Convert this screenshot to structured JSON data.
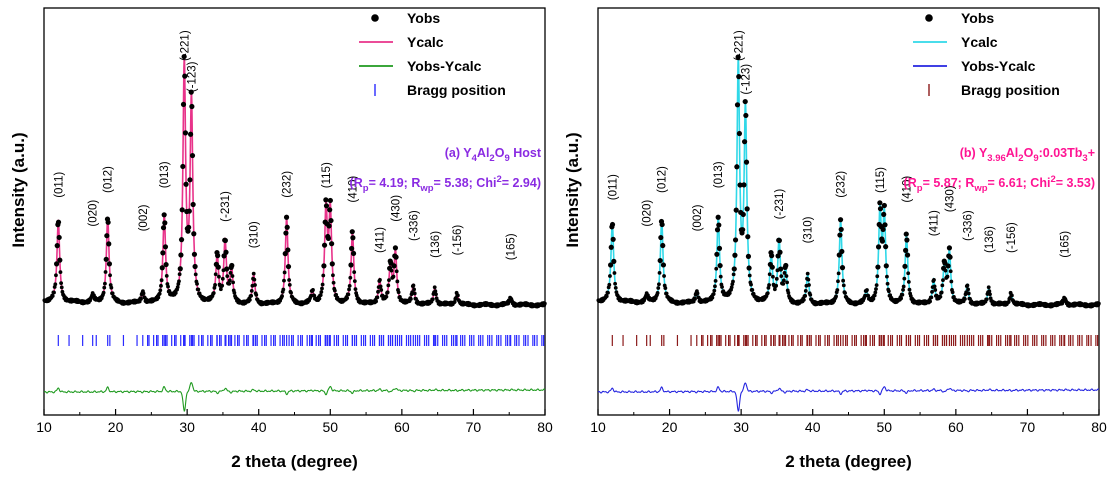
{
  "chart_data": [
    {
      "type": "line",
      "panel": "a",
      "xlabel": "2 theta (degree)",
      "ylabel": "Intensity (a.u.)",
      "xlim": [
        10,
        80
      ],
      "xticks": [
        "10",
        "20",
        "30",
        "40",
        "50",
        "60",
        "70",
        "80"
      ],
      "annotation_line1": "(a) Y4Al2O9 Host",
      "annotation_line2": "(Rp= 4.19; Rwp= 5.38; Chi2= 2.94)",
      "annotation_color": "#8a2be2",
      "calc_color": "#e8338a",
      "diff_color": "#1f9a1f",
      "bragg_color": "#2a2aff",
      "legend": [
        {
          "label": "Yobs",
          "kind": "dot",
          "color": "#000000"
        },
        {
          "label": "Ycalc",
          "kind": "line",
          "color": "#e8338a"
        },
        {
          "label": "Yobs-Ycalc",
          "kind": "line",
          "color": "#1f9a1f"
        },
        {
          "label": "Bragg position",
          "kind": "tick",
          "color": "#2a2aff"
        }
      ],
      "peaks": [
        {
          "pos": 12.0,
          "h": 0.34,
          "label": "(011)",
          "ly": 0.43
        },
        {
          "pos": 16.8,
          "h": 0.03,
          "label": "(020)",
          "ly": 0.31
        },
        {
          "pos": 18.9,
          "h": 0.36,
          "label": "(012)",
          "ly": 0.45
        },
        {
          "pos": 23.8,
          "h": 0.05,
          "label": "(002)",
          "ly": 0.29
        },
        {
          "pos": 26.8,
          "h": 0.37,
          "label": "(013)",
          "ly": 0.47
        },
        {
          "pos": 29.6,
          "h": 1.0,
          "label": "(-221)",
          "ly": 1.0
        },
        {
          "pos": 30.6,
          "h": 0.84,
          "label": "(-123)",
          "ly": 0.87
        },
        {
          "pos": 34.2,
          "h": 0.2,
          "label": "",
          "ly": 0
        },
        {
          "pos": 35.3,
          "h": 0.26,
          "label": "(-231)",
          "ly": 0.33
        },
        {
          "pos": 36.2,
          "h": 0.14,
          "label": "",
          "ly": 0
        },
        {
          "pos": 39.3,
          "h": 0.12,
          "label": "(310)",
          "ly": 0.22
        },
        {
          "pos": 43.9,
          "h": 0.36,
          "label": "(232)",
          "ly": 0.43
        },
        {
          "pos": 47.5,
          "h": 0.05,
          "label": "",
          "ly": 0
        },
        {
          "pos": 49.4,
          "h": 0.39,
          "label": "(115)",
          "ly": 0.47
        },
        {
          "pos": 50.0,
          "h": 0.38,
          "label": "",
          "ly": 0
        },
        {
          "pos": 53.1,
          "h": 0.3,
          "label": "(410)",
          "ly": 0.41
        },
        {
          "pos": 56.9,
          "h": 0.1,
          "label": "(411)",
          "ly": 0.2
        },
        {
          "pos": 58.4,
          "h": 0.16,
          "label": "",
          "ly": 0
        },
        {
          "pos": 59.1,
          "h": 0.22,
          "label": "(430)",
          "ly": 0.33
        },
        {
          "pos": 61.6,
          "h": 0.08,
          "label": "(-336)",
          "ly": 0.25
        },
        {
          "pos": 64.6,
          "h": 0.07,
          "label": "(136)",
          "ly": 0.18
        },
        {
          "pos": 67.7,
          "h": 0.05,
          "label": "(-156)",
          "ly": 0.19
        },
        {
          "pos": 75.2,
          "h": 0.03,
          "label": "(165)",
          "ly": 0.17
        }
      ]
    },
    {
      "type": "line",
      "panel": "b",
      "xlabel": "2 theta (degree)",
      "ylabel": "Intensity (a.u.)",
      "xlim": [
        10,
        80
      ],
      "xticks": [
        "10",
        "20",
        "30",
        "40",
        "50",
        "60",
        "70",
        "80"
      ],
      "annotation_line1": "(b) Y3.96Al2O9:0.03Tb3+",
      "annotation_line2": "(Rp= 5.87; Rwp= 6.61; Chi2= 3.53)",
      "annotation_color": "#ff1493",
      "calc_color": "#30d8e8",
      "diff_color": "#2525e0",
      "bragg_color": "#8b1a1a",
      "legend": [
        {
          "label": "Yobs",
          "kind": "dot",
          "color": "#000000"
        },
        {
          "label": "Ycalc",
          "kind": "line",
          "color": "#30d8e8"
        },
        {
          "label": "Yobs-Ycalc",
          "kind": "line",
          "color": "#2525e0"
        },
        {
          "label": "Bragg position",
          "kind": "tick",
          "color": "#8b1a1a"
        }
      ],
      "peaks": [
        {
          "pos": 12.0,
          "h": 0.33,
          "label": "(011)",
          "ly": 0.42
        },
        {
          "pos": 16.8,
          "h": 0.03,
          "label": "(020)",
          "ly": 0.31
        },
        {
          "pos": 18.9,
          "h": 0.35,
          "label": "(012)",
          "ly": 0.45
        },
        {
          "pos": 23.8,
          "h": 0.05,
          "label": "(002)",
          "ly": 0.29
        },
        {
          "pos": 26.8,
          "h": 0.36,
          "label": "(013)",
          "ly": 0.47
        },
        {
          "pos": 29.6,
          "h": 1.0,
          "label": "(-221)",
          "ly": 1.0
        },
        {
          "pos": 30.6,
          "h": 0.8,
          "label": "(-123)",
          "ly": 0.86
        },
        {
          "pos": 34.2,
          "h": 0.2,
          "label": "",
          "ly": 0
        },
        {
          "pos": 35.3,
          "h": 0.26,
          "label": "(-231)",
          "ly": 0.34
        },
        {
          "pos": 36.2,
          "h": 0.14,
          "label": "",
          "ly": 0
        },
        {
          "pos": 39.3,
          "h": 0.12,
          "label": "(310)",
          "ly": 0.24
        },
        {
          "pos": 43.9,
          "h": 0.35,
          "label": "(232)",
          "ly": 0.43
        },
        {
          "pos": 47.5,
          "h": 0.05,
          "label": "",
          "ly": 0
        },
        {
          "pos": 49.4,
          "h": 0.38,
          "label": "(115)",
          "ly": 0.45
        },
        {
          "pos": 50.0,
          "h": 0.36,
          "label": "",
          "ly": 0
        },
        {
          "pos": 53.1,
          "h": 0.29,
          "label": "(410)",
          "ly": 0.41
        },
        {
          "pos": 56.9,
          "h": 0.1,
          "label": "(411)",
          "ly": 0.27
        },
        {
          "pos": 58.4,
          "h": 0.16,
          "label": "",
          "ly": 0
        },
        {
          "pos": 59.1,
          "h": 0.22,
          "label": "(430)",
          "ly": 0.37
        },
        {
          "pos": 61.6,
          "h": 0.08,
          "label": "(-336)",
          "ly": 0.25
        },
        {
          "pos": 64.6,
          "h": 0.07,
          "label": "(136)",
          "ly": 0.2
        },
        {
          "pos": 67.7,
          "h": 0.05,
          "label": "(-156)",
          "ly": 0.2
        },
        {
          "pos": 75.2,
          "h": 0.03,
          "label": "(165)",
          "ly": 0.18
        }
      ]
    }
  ]
}
